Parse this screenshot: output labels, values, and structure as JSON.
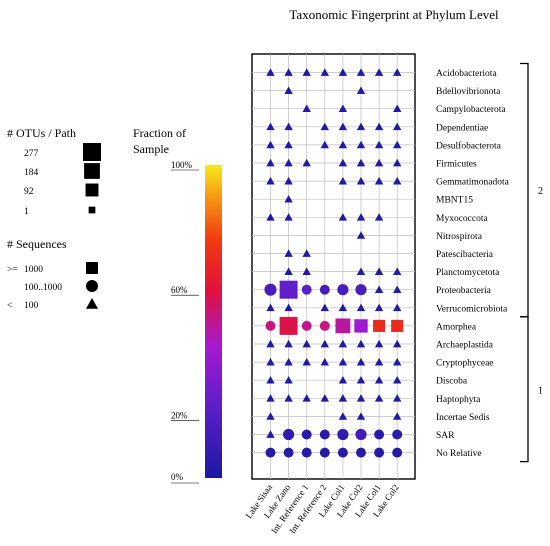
{
  "chart_data": {
    "type": "heatmap",
    "title": "Taxonomic Fingerprint at Phylum Level",
    "columns": [
      "Lake Sisaa",
      "Lake Zano",
      "Int. Reference 1",
      "Int. Reference 2",
      "Lake Col1",
      "Lake Col2",
      "Lake Col1",
      "Lake Col2"
    ],
    "rows": [
      "Acidobacteriota",
      "Bdellovibrionota",
      "Campylobacterota",
      "Dependentiae",
      "Desulfobacterota",
      "Firmicutes",
      "Gemmatimonadota",
      "MBNT15",
      "Myxococcota",
      "Nitrospirota",
      "Patescibacteria",
      "Planctomycetota",
      "Proteobacteria",
      "Verrucomicrobiota",
      "Amorphea",
      "Archaeplastida",
      "Cryptophyceae",
      "Discoba",
      "Haptophyta",
      "Incertae Sedis",
      "SAR",
      "No Relative"
    ],
    "groups": [
      {
        "label": "2",
        "first_row": 0,
        "last_row": 13
      },
      {
        "label": "1",
        "first_row": 14,
        "last_row": 21
      }
    ],
    "legend_otus": {
      "title": "# OTUs / Path",
      "entries": [
        {
          "label": "277",
          "otus": 277
        },
        {
          "label": "184",
          "otus": 184
        },
        {
          "label": "92",
          "otus": 92
        },
        {
          "label": "1",
          "otus": 1
        }
      ]
    },
    "legend_sequences": {
      "title": "# Sequences",
      "entries": [
        {
          "prefix": ">=",
          "label": "1000",
          "shape": "square"
        },
        {
          "prefix": "",
          "label": "100..1000",
          "shape": "circle"
        },
        {
          "prefix": "<",
          "label": "100",
          "shape": "triangle"
        }
      ]
    },
    "colorbar": {
      "title_line1": "Fraction of",
      "title_line2": "Sample",
      "ticks": [
        {
          "label": "100%",
          "value": 100
        },
        {
          "label": "60%",
          "value": 60
        },
        {
          "label": "20%",
          "value": 20
        },
        {
          "label": "0%",
          "value": 0
        }
      ]
    },
    "cells": [
      {
        "row": 0,
        "col": 0,
        "shape": "triangle",
        "otus": 1,
        "fraction": 2
      },
      {
        "row": 0,
        "col": 1,
        "shape": "triangle",
        "otus": 1,
        "fraction": 2
      },
      {
        "row": 0,
        "col": 2,
        "shape": "triangle",
        "otus": 1,
        "fraction": 2
      },
      {
        "row": 0,
        "col": 3,
        "shape": "triangle",
        "otus": 1,
        "fraction": 2
      },
      {
        "row": 0,
        "col": 4,
        "shape": "triangle",
        "otus": 1,
        "fraction": 2
      },
      {
        "row": 0,
        "col": 5,
        "shape": "triangle",
        "otus": 1,
        "fraction": 2
      },
      {
        "row": 0,
        "col": 6,
        "shape": "triangle",
        "otus": 1,
        "fraction": 2
      },
      {
        "row": 0,
        "col": 7,
        "shape": "triangle",
        "otus": 1,
        "fraction": 2
      },
      {
        "row": 1,
        "col": 1,
        "shape": "triangle",
        "otus": 1,
        "fraction": 2
      },
      {
        "row": 1,
        "col": 5,
        "shape": "triangle",
        "otus": 1,
        "fraction": 2
      },
      {
        "row": 2,
        "col": 2,
        "shape": "triangle",
        "otus": 1,
        "fraction": 2
      },
      {
        "row": 2,
        "col": 4,
        "shape": "triangle",
        "otus": 1,
        "fraction": 2
      },
      {
        "row": 2,
        "col": 7,
        "shape": "triangle",
        "otus": 1,
        "fraction": 2
      },
      {
        "row": 3,
        "col": 0,
        "shape": "triangle",
        "otus": 1,
        "fraction": 2
      },
      {
        "row": 3,
        "col": 1,
        "shape": "triangle",
        "otus": 1,
        "fraction": 2
      },
      {
        "row": 3,
        "col": 3,
        "shape": "triangle",
        "otus": 1,
        "fraction": 2
      },
      {
        "row": 3,
        "col": 4,
        "shape": "triangle",
        "otus": 1,
        "fraction": 2
      },
      {
        "row": 3,
        "col": 5,
        "shape": "triangle",
        "otus": 1,
        "fraction": 2
      },
      {
        "row": 3,
        "col": 6,
        "shape": "triangle",
        "otus": 1,
        "fraction": 2
      },
      {
        "row": 3,
        "col": 7,
        "shape": "triangle",
        "otus": 1,
        "fraction": 2
      },
      {
        "row": 4,
        "col": 0,
        "shape": "triangle",
        "otus": 1,
        "fraction": 2
      },
      {
        "row": 4,
        "col": 1,
        "shape": "triangle",
        "otus": 1,
        "fraction": 2
      },
      {
        "row": 4,
        "col": 3,
        "shape": "triangle",
        "otus": 1,
        "fraction": 2
      },
      {
        "row": 4,
        "col": 4,
        "shape": "triangle",
        "otus": 1,
        "fraction": 2
      },
      {
        "row": 4,
        "col": 5,
        "shape": "triangle",
        "otus": 1,
        "fraction": 2
      },
      {
        "row": 4,
        "col": 6,
        "shape": "triangle",
        "otus": 1,
        "fraction": 2
      },
      {
        "row": 4,
        "col": 7,
        "shape": "triangle",
        "otus": 1,
        "fraction": 2
      },
      {
        "row": 5,
        "col": 0,
        "shape": "triangle",
        "otus": 1,
        "fraction": 2
      },
      {
        "row": 5,
        "col": 1,
        "shape": "triangle",
        "otus": 1,
        "fraction": 2
      },
      {
        "row": 5,
        "col": 2,
        "shape": "triangle",
        "otus": 1,
        "fraction": 2
      },
      {
        "row": 5,
        "col": 4,
        "shape": "triangle",
        "otus": 1,
        "fraction": 2
      },
      {
        "row": 5,
        "col": 5,
        "shape": "triangle",
        "otus": 1,
        "fraction": 2
      },
      {
        "row": 5,
        "col": 6,
        "shape": "triangle",
        "otus": 1,
        "fraction": 2
      },
      {
        "row": 5,
        "col": 7,
        "shape": "triangle",
        "otus": 1,
        "fraction": 2
      },
      {
        "row": 6,
        "col": 0,
        "shape": "triangle",
        "otus": 1,
        "fraction": 2
      },
      {
        "row": 6,
        "col": 1,
        "shape": "triangle",
        "otus": 1,
        "fraction": 2
      },
      {
        "row": 6,
        "col": 4,
        "shape": "triangle",
        "otus": 1,
        "fraction": 2
      },
      {
        "row": 6,
        "col": 5,
        "shape": "triangle",
        "otus": 1,
        "fraction": 2
      },
      {
        "row": 6,
        "col": 6,
        "shape": "triangle",
        "otus": 1,
        "fraction": 2
      },
      {
        "row": 6,
        "col": 7,
        "shape": "triangle",
        "otus": 1,
        "fraction": 2
      },
      {
        "row": 7,
        "col": 1,
        "shape": "triangle",
        "otus": 1,
        "fraction": 2
      },
      {
        "row": 8,
        "col": 0,
        "shape": "triangle",
        "otus": 1,
        "fraction": 2
      },
      {
        "row": 8,
        "col": 1,
        "shape": "triangle",
        "otus": 1,
        "fraction": 2
      },
      {
        "row": 8,
        "col": 4,
        "shape": "triangle",
        "otus": 1,
        "fraction": 2
      },
      {
        "row": 8,
        "col": 5,
        "shape": "triangle",
        "otus": 1,
        "fraction": 2
      },
      {
        "row": 8,
        "col": 6,
        "shape": "triangle",
        "otus": 1,
        "fraction": 2
      },
      {
        "row": 9,
        "col": 5,
        "shape": "triangle",
        "otus": 1,
        "fraction": 2
      },
      {
        "row": 10,
        "col": 1,
        "shape": "triangle",
        "otus": 1,
        "fraction": 2
      },
      {
        "row": 10,
        "col": 2,
        "shape": "triangle",
        "otus": 1,
        "fraction": 2
      },
      {
        "row": 11,
        "col": 1,
        "shape": "triangle",
        "otus": 1,
        "fraction": 2
      },
      {
        "row": 11,
        "col": 2,
        "shape": "triangle",
        "otus": 1,
        "fraction": 2
      },
      {
        "row": 11,
        "col": 5,
        "shape": "triangle",
        "otus": 1,
        "fraction": 2
      },
      {
        "row": 11,
        "col": 6,
        "shape": "triangle",
        "otus": 1,
        "fraction": 2
      },
      {
        "row": 11,
        "col": 7,
        "shape": "triangle",
        "otus": 1,
        "fraction": 2
      },
      {
        "row": 12,
        "col": 0,
        "shape": "circle",
        "otus": 60,
        "fraction": 16
      },
      {
        "row": 12,
        "col": 1,
        "shape": "square",
        "otus": 277,
        "fraction": 24
      },
      {
        "row": 12,
        "col": 2,
        "shape": "circle",
        "otus": 20,
        "fraction": 22
      },
      {
        "row": 12,
        "col": 3,
        "shape": "circle",
        "otus": 20,
        "fraction": 16
      },
      {
        "row": 12,
        "col": 4,
        "shape": "circle",
        "otus": 40,
        "fraction": 16
      },
      {
        "row": 12,
        "col": 5,
        "shape": "circle",
        "otus": 40,
        "fraction": 16
      },
      {
        "row": 12,
        "col": 6,
        "shape": "triangle",
        "otus": 1,
        "fraction": 2
      },
      {
        "row": 12,
        "col": 7,
        "shape": "triangle",
        "otus": 1,
        "fraction": 2
      },
      {
        "row": 13,
        "col": 0,
        "shape": "triangle",
        "otus": 1,
        "fraction": 2
      },
      {
        "row": 13,
        "col": 1,
        "shape": "triangle",
        "otus": 1,
        "fraction": 2
      },
      {
        "row": 13,
        "col": 3,
        "shape": "triangle",
        "otus": 1,
        "fraction": 2
      },
      {
        "row": 13,
        "col": 4,
        "shape": "triangle",
        "otus": 1,
        "fraction": 2
      },
      {
        "row": 13,
        "col": 5,
        "shape": "triangle",
        "otus": 1,
        "fraction": 2
      },
      {
        "row": 13,
        "col": 6,
        "shape": "triangle",
        "otus": 1,
        "fraction": 2
      },
      {
        "row": 13,
        "col": 7,
        "shape": "triangle",
        "otus": 1,
        "fraction": 2
      },
      {
        "row": 14,
        "col": 0,
        "shape": "circle",
        "otus": 20,
        "fraction": 52
      },
      {
        "row": 14,
        "col": 1,
        "shape": "square",
        "otus": 277,
        "fraction": 58
      },
      {
        "row": 14,
        "col": 2,
        "shape": "circle",
        "otus": 20,
        "fraction": 50
      },
      {
        "row": 14,
        "col": 3,
        "shape": "circle",
        "otus": 20,
        "fraction": 52
      },
      {
        "row": 14,
        "col": 4,
        "shape": "square",
        "otus": 140,
        "fraction": 48
      },
      {
        "row": 14,
        "col": 5,
        "shape": "square",
        "otus": 92,
        "fraction": 40
      },
      {
        "row": 14,
        "col": 6,
        "shape": "square",
        "otus": 60,
        "fraction": 70
      },
      {
        "row": 14,
        "col": 7,
        "shape": "square",
        "otus": 60,
        "fraction": 70
      },
      {
        "row": 15,
        "col": 0,
        "shape": "triangle",
        "otus": 1,
        "fraction": 2
      },
      {
        "row": 15,
        "col": 1,
        "shape": "triangle",
        "otus": 1,
        "fraction": 2
      },
      {
        "row": 15,
        "col": 2,
        "shape": "triangle",
        "otus": 1,
        "fraction": 2
      },
      {
        "row": 15,
        "col": 3,
        "shape": "triangle",
        "otus": 1,
        "fraction": 2
      },
      {
        "row": 15,
        "col": 4,
        "shape": "triangle",
        "otus": 1,
        "fraction": 2
      },
      {
        "row": 15,
        "col": 5,
        "shape": "triangle",
        "otus": 1,
        "fraction": 2
      },
      {
        "row": 15,
        "col": 6,
        "shape": "triangle",
        "otus": 1,
        "fraction": 2
      },
      {
        "row": 15,
        "col": 7,
        "shape": "triangle",
        "otus": 1,
        "fraction": 2
      },
      {
        "row": 16,
        "col": 0,
        "shape": "triangle",
        "otus": 1,
        "fraction": 2
      },
      {
        "row": 16,
        "col": 1,
        "shape": "triangle",
        "otus": 1,
        "fraction": 2
      },
      {
        "row": 16,
        "col": 2,
        "shape": "triangle",
        "otus": 1,
        "fraction": 2
      },
      {
        "row": 16,
        "col": 3,
        "shape": "triangle",
        "otus": 1,
        "fraction": 2
      },
      {
        "row": 16,
        "col": 4,
        "shape": "triangle",
        "otus": 1,
        "fraction": 2
      },
      {
        "row": 16,
        "col": 5,
        "shape": "triangle",
        "otus": 1,
        "fraction": 2
      },
      {
        "row": 16,
        "col": 6,
        "shape": "triangle",
        "otus": 1,
        "fraction": 2
      },
      {
        "row": 16,
        "col": 7,
        "shape": "triangle",
        "otus": 1,
        "fraction": 2
      },
      {
        "row": 17,
        "col": 0,
        "shape": "triangle",
        "otus": 1,
        "fraction": 2
      },
      {
        "row": 17,
        "col": 1,
        "shape": "triangle",
        "otus": 1,
        "fraction": 2
      },
      {
        "row": 17,
        "col": 4,
        "shape": "triangle",
        "otus": 1,
        "fraction": 2
      },
      {
        "row": 17,
        "col": 5,
        "shape": "triangle",
        "otus": 1,
        "fraction": 2
      },
      {
        "row": 17,
        "col": 6,
        "shape": "triangle",
        "otus": 1,
        "fraction": 2
      },
      {
        "row": 17,
        "col": 7,
        "shape": "triangle",
        "otus": 1,
        "fraction": 2
      },
      {
        "row": 18,
        "col": 0,
        "shape": "triangle",
        "otus": 1,
        "fraction": 2
      },
      {
        "row": 18,
        "col": 1,
        "shape": "triangle",
        "otus": 1,
        "fraction": 2
      },
      {
        "row": 18,
        "col": 2,
        "shape": "triangle",
        "otus": 1,
        "fraction": 2
      },
      {
        "row": 18,
        "col": 3,
        "shape": "triangle",
        "otus": 1,
        "fraction": 2
      },
      {
        "row": 18,
        "col": 4,
        "shape": "triangle",
        "otus": 1,
        "fraction": 2
      },
      {
        "row": 18,
        "col": 5,
        "shape": "triangle",
        "otus": 1,
        "fraction": 2
      },
      {
        "row": 18,
        "col": 6,
        "shape": "triangle",
        "otus": 1,
        "fraction": 2
      },
      {
        "row": 18,
        "col": 7,
        "shape": "triangle",
        "otus": 1,
        "fraction": 2
      },
      {
        "row": 19,
        "col": 0,
        "shape": "triangle",
        "otus": 1,
        "fraction": 2
      },
      {
        "row": 19,
        "col": 4,
        "shape": "triangle",
        "otus": 1,
        "fraction": 2
      },
      {
        "row": 19,
        "col": 5,
        "shape": "triangle",
        "otus": 1,
        "fraction": 2
      },
      {
        "row": 19,
        "col": 7,
        "shape": "triangle",
        "otus": 1,
        "fraction": 2
      },
      {
        "row": 20,
        "col": 0,
        "shape": "triangle",
        "otus": 1,
        "fraction": 2
      },
      {
        "row": 20,
        "col": 1,
        "shape": "circle",
        "otus": 40,
        "fraction": 8
      },
      {
        "row": 20,
        "col": 2,
        "shape": "circle",
        "otus": 20,
        "fraction": 6
      },
      {
        "row": 20,
        "col": 3,
        "shape": "circle",
        "otus": 20,
        "fraction": 6
      },
      {
        "row": 20,
        "col": 4,
        "shape": "circle",
        "otus": 40,
        "fraction": 8
      },
      {
        "row": 20,
        "col": 5,
        "shape": "circle",
        "otus": 40,
        "fraction": 14
      },
      {
        "row": 20,
        "col": 6,
        "shape": "circle",
        "otus": 20,
        "fraction": 6
      },
      {
        "row": 20,
        "col": 7,
        "shape": "circle",
        "otus": 20,
        "fraction": 6
      },
      {
        "row": 21,
        "col": 0,
        "shape": "circle",
        "otus": 20,
        "fraction": 4
      },
      {
        "row": 21,
        "col": 1,
        "shape": "circle",
        "otus": 20,
        "fraction": 4
      },
      {
        "row": 21,
        "col": 2,
        "shape": "circle",
        "otus": 20,
        "fraction": 4
      },
      {
        "row": 21,
        "col": 3,
        "shape": "circle",
        "otus": 20,
        "fraction": 4
      },
      {
        "row": 21,
        "col": 4,
        "shape": "circle",
        "otus": 20,
        "fraction": 4
      },
      {
        "row": 21,
        "col": 5,
        "shape": "circle",
        "otus": 20,
        "fraction": 4
      },
      {
        "row": 21,
        "col": 6,
        "shape": "circle",
        "otus": 20,
        "fraction": 4
      },
      {
        "row": 21,
        "col": 7,
        "shape": "circle",
        "otus": 20,
        "fraction": 4
      }
    ]
  }
}
